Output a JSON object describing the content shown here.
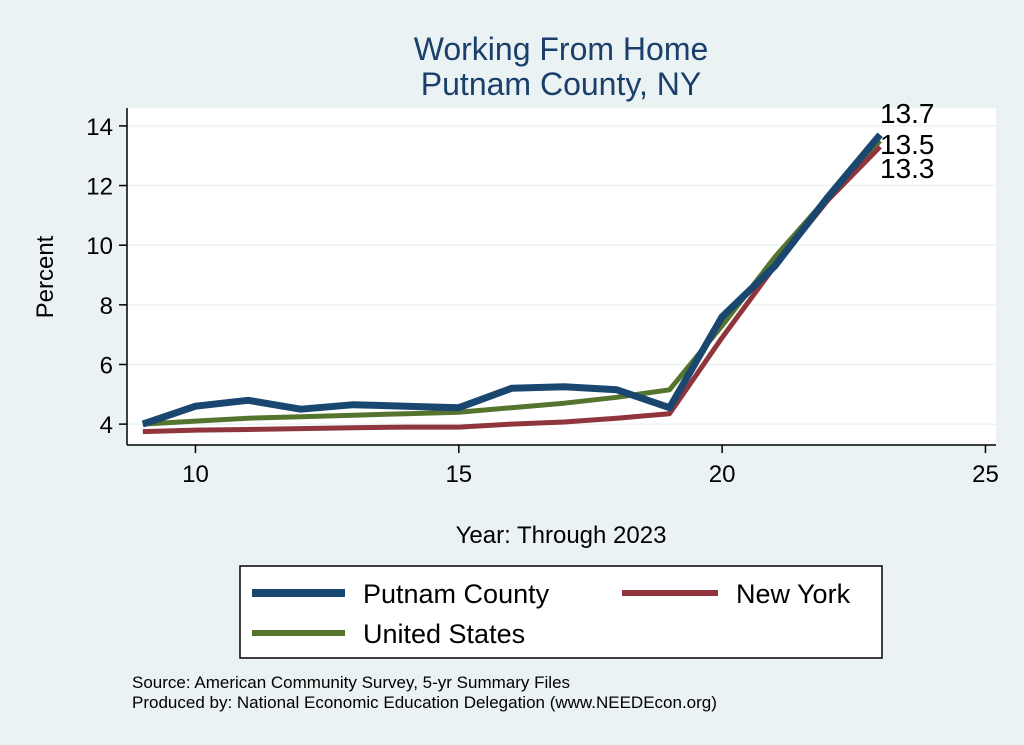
{
  "chart_data": {
    "type": "line",
    "title": "Working From Home",
    "subtitle": "Putnam County, NY",
    "xlabel": "Year: Through 2023",
    "ylabel": "Percent",
    "xlim": [
      8.7,
      25.2
    ],
    "ylim": [
      3.3,
      14.6
    ],
    "xticks": [
      10,
      15,
      20,
      25
    ],
    "yticks": [
      4,
      6,
      8,
      10,
      12,
      14
    ],
    "grid": true,
    "legend_position": "bottom",
    "x": [
      9,
      10,
      11,
      12,
      13,
      14,
      15,
      16,
      17,
      18,
      19,
      20,
      21,
      22,
      23
    ],
    "series": [
      {
        "name": "Putnam County",
        "color": "#1a476f",
        "values": [
          4.0,
          4.6,
          4.8,
          4.5,
          4.65,
          4.6,
          4.55,
          5.2,
          5.25,
          5.15,
          4.55,
          7.6,
          9.3,
          11.6,
          13.7
        ]
      },
      {
        "name": "New York",
        "color": "#90353b",
        "values": [
          3.75,
          3.8,
          3.82,
          3.85,
          3.88,
          3.9,
          3.9,
          4.0,
          4.07,
          4.2,
          4.35,
          6.9,
          9.3,
          11.5,
          13.3
        ]
      },
      {
        "name": "United States",
        "color": "#55752f",
        "values": [
          4.0,
          4.1,
          4.2,
          4.25,
          4.3,
          4.35,
          4.4,
          4.55,
          4.7,
          4.9,
          5.15,
          7.3,
          9.6,
          11.6,
          13.5
        ]
      }
    ],
    "end_labels": [
      "13.7",
      "13.5",
      "13.3"
    ]
  },
  "notes": {
    "source": "Source: American Community Survey, 5-yr Summary Files",
    "produced_by": "Produced by: National Economic Education Delegation (www.NEEDEcon.org)"
  }
}
